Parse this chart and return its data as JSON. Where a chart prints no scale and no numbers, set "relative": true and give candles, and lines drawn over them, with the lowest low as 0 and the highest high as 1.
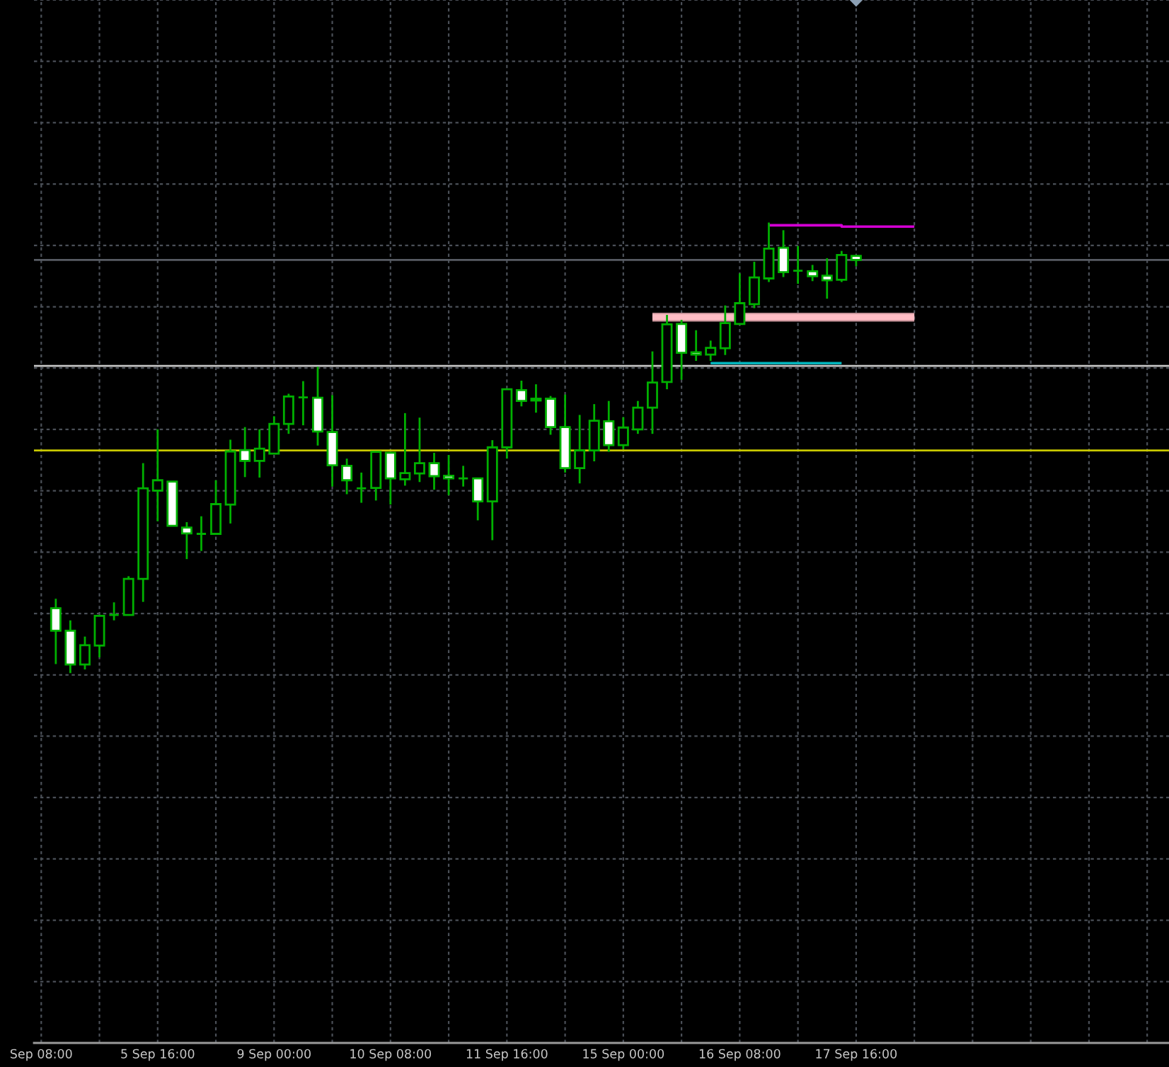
{
  "chart_data": {
    "type": "candlestick",
    "relative": true,
    "grid": true,
    "color": "#00b000",
    "categories": [
      "Sep 08:00",
      null,
      null,
      null,
      null,
      null,
      null,
      null,
      "5 Sep 16:00",
      null,
      null,
      null,
      null,
      null,
      null,
      null,
      "9 Sep 00:00",
      null,
      null,
      null,
      null,
      null,
      null,
      null,
      "10 Sep 08:00",
      null,
      null,
      null,
      null,
      null,
      null,
      null,
      "11 Sep 16:00",
      null,
      null,
      null,
      null,
      null,
      null,
      null,
      "15 Sep 00:00",
      null,
      null,
      null,
      null,
      null,
      null,
      null,
      "16 Sep 08:00",
      null,
      null,
      null,
      null,
      null,
      null,
      null,
      "17 Sep 16:00",
      null,
      null,
      null,
      null,
      null,
      null,
      null,
      null,
      null,
      null,
      null,
      null,
      null,
      null,
      null,
      null,
      null,
      null,
      null,
      null,
      null
    ],
    "ohlc": [
      null,
      [
        0.144,
        0.165,
        0.02,
        0.094
      ],
      [
        0.094,
        0.117,
        0.0,
        0.019
      ],
      [
        0.019,
        0.081,
        0.008,
        0.062
      ],
      [
        0.061,
        0.127,
        0.035,
        0.127
      ],
      [
        0.129,
        0.157,
        0.117,
        0.129
      ],
      [
        0.129,
        0.215,
        0.129,
        0.209
      ],
      [
        0.209,
        0.466,
        0.158,
        0.41
      ],
      [
        0.405,
        0.541,
        0.337,
        0.428
      ],
      [
        0.425,
        0.425,
        0.327,
        0.327
      ],
      [
        0.323,
        0.335,
        0.253,
        0.31
      ],
      [
        0.309,
        0.348,
        0.271,
        0.309
      ],
      [
        0.309,
        0.428,
        0.309,
        0.375
      ],
      [
        0.374,
        0.518,
        0.332,
        0.492
      ],
      [
        0.495,
        0.546,
        0.435,
        0.471
      ],
      [
        0.471,
        0.541,
        0.434,
        0.498
      ],
      [
        0.487,
        0.57,
        0.487,
        0.553
      ],
      [
        0.553,
        0.62,
        0.531,
        0.614
      ],
      [
        0.612,
        0.648,
        0.55,
        0.612
      ],
      [
        0.611,
        0.68,
        0.505,
        0.536
      ],
      [
        0.535,
        0.617,
        0.414,
        0.461
      ],
      [
        0.46,
        0.476,
        0.397,
        0.428
      ],
      [
        0.41,
        0.445,
        0.378,
        0.41
      ],
      [
        0.411,
        0.492,
        0.383,
        0.491
      ],
      [
        0.489,
        0.491,
        0.374,
        0.432
      ],
      [
        0.43,
        0.577,
        0.416,
        0.444
      ],
      [
        0.443,
        0.567,
        0.424,
        0.466
      ],
      [
        0.466,
        0.489,
        0.407,
        0.437
      ],
      [
        0.438,
        0.484,
        0.395,
        0.432
      ],
      [
        0.432,
        0.46,
        0.414,
        0.432
      ],
      [
        0.432,
        0.432,
        0.339,
        0.381
      ],
      [
        0.381,
        0.517,
        0.295,
        0.501
      ],
      [
        0.501,
        0.63,
        0.476,
        0.63
      ],
      [
        0.628,
        0.649,
        0.592,
        0.604
      ],
      [
        0.605,
        0.641,
        0.578,
        0.609
      ],
      [
        0.609,
        0.615,
        0.529,
        0.546
      ],
      [
        0.546,
        0.618,
        0.445,
        0.455
      ],
      [
        0.455,
        0.573,
        0.421,
        0.494
      ],
      [
        0.494,
        0.597,
        0.47,
        0.56
      ],
      [
        0.559,
        0.604,
        0.491,
        0.506
      ],
      [
        0.506,
        0.568,
        0.497,
        0.545
      ],
      [
        0.541,
        0.604,
        0.531,
        0.589
      ],
      [
        0.589,
        0.714,
        0.531,
        0.645
      ],
      [
        0.646,
        0.795,
        0.63,
        0.774
      ],
      [
        0.775,
        0.784,
        0.651,
        0.711
      ],
      [
        0.712,
        0.761,
        0.693,
        0.707
      ],
      [
        0.707,
        0.738,
        0.693,
        0.722
      ],
      [
        0.721,
        0.816,
        0.706,
        0.777
      ],
      [
        0.775,
        0.887,
        0.775,
        0.821
      ],
      [
        0.819,
        0.913,
        0.81,
        0.878
      ],
      [
        0.876,
        1.0,
        0.868,
        0.942
      ],
      [
        0.944,
        0.983,
        0.879,
        0.89
      ],
      [
        0.893,
        0.948,
        0.864,
        0.893
      ],
      [
        0.892,
        0.906,
        0.87,
        0.881
      ],
      [
        0.882,
        0.921,
        0.831,
        0.872
      ],
      [
        0.873,
        0.937,
        0.868,
        0.928
      ],
      [
        0.926,
        0.926,
        0.903,
        0.917
      ],
      null,
      null,
      null,
      null,
      null,
      null,
      null,
      null,
      null,
      null,
      null,
      null,
      null,
      null,
      null,
      null,
      null,
      null,
      null,
      null,
      null
    ],
    "colors": [
      null,
      "#ffffff",
      "#ffffff",
      "#000000",
      "#000000",
      "#00b000",
      "#000000",
      "#000000",
      "#000000",
      "#ffffff",
      "#ffffff",
      "#00b000",
      "#000000",
      "#000000",
      "#ffffff",
      "#000000",
      "#000000",
      "#000000",
      "#00b000",
      "#ffffff",
      "#ffffff",
      "#ffffff",
      "#00b000",
      "#000000",
      "#ffffff",
      "#000000",
      "#000000",
      "#ffffff",
      "#ffffff",
      "#00b000",
      "#ffffff",
      "#000000",
      "#000000",
      "#ffffff",
      "#000000",
      "#ffffff",
      "#ffffff",
      "#000000",
      "#000000",
      "#ffffff",
      "#000000",
      "#000000",
      "#000000",
      "#000000",
      "#ffffff",
      "#ffffff",
      "#000000",
      "#000000",
      "#000000",
      "#000000",
      "#000000",
      "#ffffff",
      "#00b000",
      "#ffffff",
      "#ffffff",
      "#000000",
      "#ffffff",
      null,
      null,
      null,
      null,
      null,
      null,
      null,
      null,
      null,
      null,
      null,
      null,
      null,
      null,
      null,
      null,
      null,
      null,
      null,
      null,
      null
    ],
    "series": [
      {
        "type": "line",
        "color": "#ffbcc4",
        "values": [
          null,
          null,
          null,
          null,
          null,
          null,
          null,
          null,
          null,
          null,
          null,
          null,
          null,
          null,
          null,
          null,
          null,
          null,
          null,
          null,
          null,
          null,
          null,
          null,
          null,
          null,
          null,
          null,
          null,
          null,
          null,
          null,
          null,
          null,
          null,
          null,
          null,
          null,
          null,
          null,
          null,
          null,
          0.79,
          0.79,
          0.79,
          0.79,
          0.79,
          0.79,
          0.79,
          0.79,
          0.79,
          0.79,
          0.79,
          0.79,
          0.79,
          0.79,
          0.79,
          0.79,
          0.79,
          0.79,
          0.79,
          null,
          null,
          null,
          null,
          null,
          null,
          null,
          null,
          null,
          null,
          null,
          null,
          null,
          null,
          null,
          null,
          null
        ],
        "lower": [
          null,
          null,
          null,
          null,
          null,
          null,
          null,
          null,
          null,
          null,
          null,
          null,
          null,
          null,
          null,
          null,
          null,
          null,
          null,
          null,
          null,
          null,
          null,
          null,
          null,
          null,
          null,
          null,
          null,
          null,
          null,
          null,
          null,
          null,
          null,
          null,
          null,
          null,
          null,
          null,
          null,
          null,
          0.78,
          0.78,
          0.78,
          0.78,
          0.78,
          0.78,
          0.78,
          0.78,
          0.78,
          0.78,
          0.78,
          0.78,
          0.78,
          0.78,
          0.78,
          0.78,
          0.78,
          0.78,
          0.78,
          null,
          null,
          null,
          null,
          null,
          null,
          null,
          null,
          null,
          null,
          null,
          null,
          null,
          null,
          null,
          null,
          null
        ],
        "upper": [
          null,
          null,
          null,
          null,
          null,
          null,
          null,
          null,
          null,
          null,
          null,
          null,
          null,
          null,
          null,
          null,
          null,
          null,
          null,
          null,
          null,
          null,
          null,
          null,
          null,
          null,
          null,
          null,
          null,
          null,
          null,
          null,
          null,
          null,
          null,
          null,
          null,
          null,
          null,
          null,
          null,
          null,
          0.8,
          0.8,
          0.8,
          0.8,
          0.8,
          0.8,
          0.8,
          0.8,
          0.8,
          0.8,
          0.8,
          0.8,
          0.8,
          0.8,
          0.8,
          0.8,
          0.8,
          0.8,
          0.8,
          null,
          null,
          null,
          null,
          null,
          null,
          null,
          null,
          null,
          null,
          null,
          null,
          null,
          null,
          null,
          null,
          null
        ]
      },
      {
        "type": "step",
        "color": "#d400d4",
        "values": [
          null,
          null,
          null,
          null,
          null,
          null,
          null,
          null,
          null,
          null,
          null,
          null,
          null,
          null,
          null,
          null,
          null,
          null,
          null,
          null,
          null,
          null,
          null,
          null,
          null,
          null,
          null,
          null,
          null,
          null,
          null,
          null,
          null,
          null,
          null,
          null,
          null,
          null,
          null,
          null,
          null,
          null,
          null,
          null,
          null,
          null,
          null,
          null,
          null,
          null,
          0.994,
          0.994,
          0.994,
          0.994,
          0.994,
          0.991,
          0.991,
          0.991,
          0.991,
          0.991,
          0.991,
          null,
          null,
          null,
          null,
          null,
          null,
          null,
          null,
          null,
          null,
          null,
          null,
          null,
          null,
          null,
          null,
          null
        ]
      },
      {
        "type": "line",
        "color": "#00b4bc",
        "values": [
          null,
          null,
          null,
          null,
          null,
          null,
          null,
          null,
          null,
          null,
          null,
          null,
          null,
          null,
          null,
          null,
          null,
          null,
          null,
          null,
          null,
          null,
          null,
          null,
          null,
          null,
          null,
          null,
          null,
          null,
          null,
          null,
          null,
          null,
          null,
          null,
          null,
          null,
          null,
          null,
          null,
          null,
          null,
          null,
          null,
          null,
          0.688,
          0.688,
          0.688,
          0.688,
          0.688,
          0.688,
          0.688,
          0.688,
          0.688,
          0.688,
          null,
          null,
          null,
          null,
          null,
          null,
          null,
          null,
          null,
          null,
          null,
          null,
          null,
          null,
          null,
          null,
          null,
          null,
          null,
          null,
          null,
          null
        ]
      }
    ],
    "ref_lines": [
      {
        "axis": "y",
        "value": 0.917,
        "color": "#585c64"
      },
      {
        "axis": "y",
        "value": 0.682,
        "color": "#c4c4c4"
      },
      {
        "axis": "y",
        "value": 0.494,
        "color": "#c8c800"
      }
    ]
  }
}
